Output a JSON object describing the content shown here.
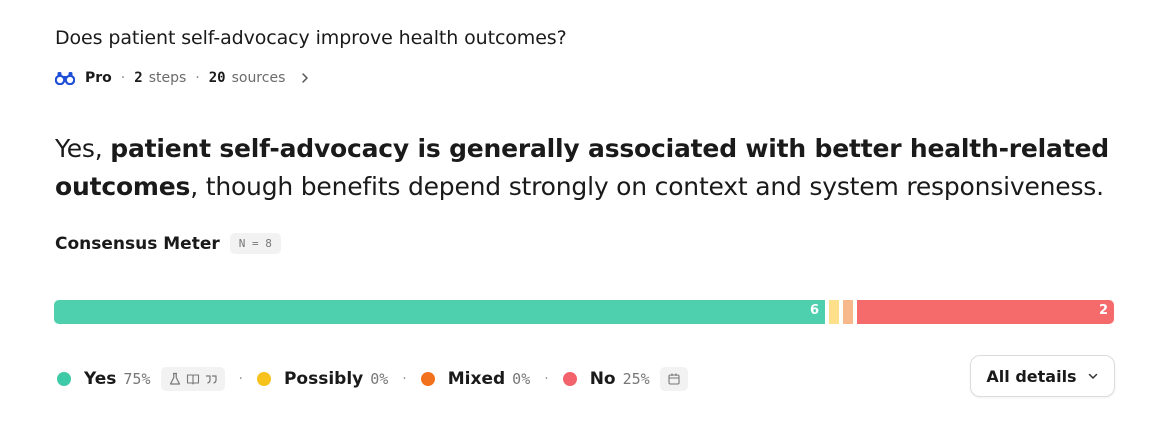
{
  "question": "Does patient self-advocacy improve health outcomes?",
  "meta": {
    "mode": "Pro",
    "steps_count": "2",
    "steps_label": "steps",
    "sources_count": "20",
    "sources_label": "sources",
    "separator": "·"
  },
  "answer": {
    "lead": "Yes, ",
    "bold": "patient self-advocacy is generally associated with better health-related outcomes",
    "rest": ", though benefits depend strongly on context and system responsiveness."
  },
  "consensus": {
    "title": "Consensus Meter",
    "n_label": "N = 8",
    "segments": [
      {
        "key": "yes",
        "label": "Yes",
        "count": 6,
        "pct": "75%",
        "bar_label": "6",
        "color": "#4ecfae"
      },
      {
        "key": "possibly",
        "label": "Possibly",
        "count": 0,
        "pct": "0%",
        "bar_label": "",
        "color": "#ffe08a"
      },
      {
        "key": "mixed",
        "label": "Mixed",
        "count": 0,
        "pct": "0%",
        "bar_label": "",
        "color": "#f7b88a"
      },
      {
        "key": "no",
        "label": "No",
        "count": 2,
        "pct": "25%",
        "bar_label": "2",
        "color": "#f56b6b"
      }
    ],
    "legend_swatch_colors": {
      "yes": "#3ec9a7",
      "possibly": "#f7c21c",
      "mixed": "#f2711c",
      "no": "#f2636b"
    },
    "yes_study_icons": [
      "flask-icon",
      "book-icon",
      "quote-icon"
    ],
    "no_study_icons": [
      "calendar-icon"
    ]
  },
  "details_button": {
    "label": "All details"
  }
}
